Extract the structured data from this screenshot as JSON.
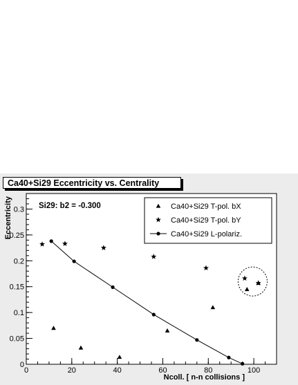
{
  "chart_data": {
    "type": "scatter",
    "title": "Ca40+Si29  Eccentricity vs. Centrality",
    "annotation": "Si29:  b2 = -0.300",
    "xlabel": "Ncoll. [ n-n collisions ]",
    "ylabel": "Eccentricity",
    "xlim": [
      0,
      110
    ],
    "ylim": [
      0,
      0.33
    ],
    "x_ticks": [
      0,
      20,
      40,
      60,
      80,
      100
    ],
    "x_tick_labels": [
      "0",
      "20",
      "40",
      "60",
      "80",
      "100"
    ],
    "y_ticks": [
      0,
      0.05,
      0.1,
      0.15,
      0.2,
      0.25,
      0.3
    ],
    "y_tick_labels": [
      "0",
      "0.05",
      "0.1",
      "0.15",
      "0.2",
      "0.25",
      "0.3"
    ],
    "grid": false,
    "legend_position": "top-right",
    "series": [
      {
        "name": "Ca40+Si29 T-pol. bX",
        "marker": "triangle",
        "points": [
          [
            12,
            0.07
          ],
          [
            24,
            0.032
          ],
          [
            41,
            0.014
          ],
          [
            62,
            0.065
          ],
          [
            82,
            0.11
          ],
          [
            97,
            0.145
          ],
          [
            102,
            0.157
          ]
        ]
      },
      {
        "name": "Ca40+Si29 T-pol. bY",
        "marker": "star",
        "points": [
          [
            7,
            0.232
          ],
          [
            17,
            0.233
          ],
          [
            34,
            0.225
          ],
          [
            56,
            0.208
          ],
          [
            79,
            0.186
          ],
          [
            96,
            0.166
          ],
          [
            102,
            0.157
          ]
        ]
      },
      {
        "name": "Ca40+Si29 L-polariz.",
        "marker": "circle-line",
        "points": [
          [
            11,
            0.238
          ],
          [
            21,
            0.199
          ],
          [
            38,
            0.149
          ],
          [
            56,
            0.096
          ],
          [
            75,
            0.047
          ],
          [
            89,
            0.013
          ],
          [
            95,
            0.001
          ]
        ]
      }
    ],
    "highlight_circle": {
      "x": 99.5,
      "y": 0.16
    },
    "colors": {
      "canvas": "#ececec",
      "frame": "#ffffff",
      "ink": "#000000"
    }
  }
}
